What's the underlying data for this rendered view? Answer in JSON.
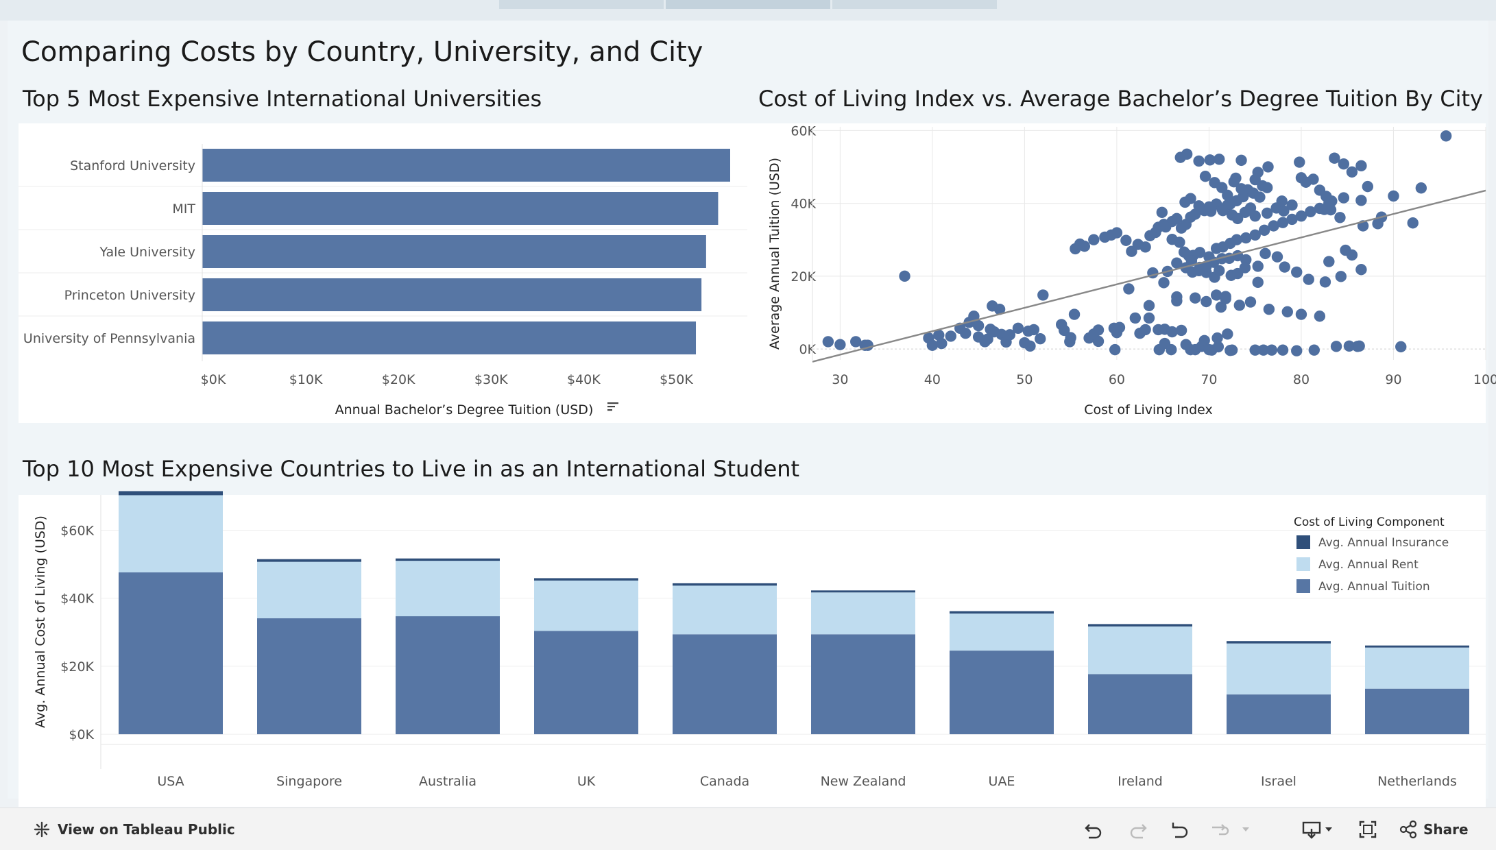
{
  "dashboard": {
    "title": "Comparing Costs by Country, University, and City"
  },
  "colors": {
    "tuition": "#5776a4",
    "rent": "#bfdcef",
    "insurance": "#2f4f7a",
    "point": "#4f6fa0",
    "trend": "#888888",
    "grid": "#e8e8e8"
  },
  "chart_data": [
    {
      "type": "bar",
      "title": "Top 5 Most Expensive International Universities",
      "categories": [
        "Stanford University",
        "MIT",
        "Yale University",
        "Princeton University",
        "University of Pennsylvania"
      ],
      "values": [
        57000,
        55700,
        54400,
        53900,
        53300
      ],
      "xlabel": "Annual Bachelor’s Degree Tuition (USD)",
      "xlim": [
        0,
        57000
      ],
      "ticks": [
        {
          "v": 0,
          "label": "$0K"
        },
        {
          "v": 10000,
          "label": "$10K"
        },
        {
          "v": 20000,
          "label": "$20K"
        },
        {
          "v": 30000,
          "label": "$30K"
        },
        {
          "v": 40000,
          "label": "$40K"
        },
        {
          "v": 50000,
          "label": "$50K"
        }
      ]
    },
    {
      "type": "scatter",
      "title": "Cost of Living Index vs. Average Bachelor’s Degree Tuition By City",
      "xlabel": "Cost of Living Index",
      "ylabel": "Average Annual Tuition (USD)",
      "xlim": [
        27,
        100
      ],
      "ylim": [
        -3000,
        61000
      ],
      "xticks": [
        {
          "v": 30,
          "label": "30"
        },
        {
          "v": 40,
          "label": "40"
        },
        {
          "v": 50,
          "label": "50"
        },
        {
          "v": 60,
          "label": "60"
        },
        {
          "v": 70,
          "label": "70"
        },
        {
          "v": 80,
          "label": "80"
        },
        {
          "v": 90,
          "label": "90"
        },
        {
          "v": 100,
          "label": "100"
        }
      ],
      "yticks": [
        {
          "v": 0,
          "label": "0K"
        },
        {
          "v": 20000,
          "label": "20K"
        },
        {
          "v": 40000,
          "label": "40K"
        },
        {
          "v": 60000,
          "label": "60K"
        }
      ],
      "trend": {
        "x": [
          27,
          100
        ],
        "y": [
          -3500,
          43500
        ]
      },
      "points": [
        [
          28.7,
          2000
        ],
        [
          30,
          1200
        ],
        [
          31.7,
          2000
        ],
        [
          32.7,
          1000
        ],
        [
          33,
          1000
        ],
        [
          37,
          20000
        ],
        [
          39.6,
          3000
        ],
        [
          40,
          1000
        ],
        [
          40.7,
          3800
        ],
        [
          41,
          1500
        ],
        [
          42,
          3500
        ],
        [
          43,
          5700
        ],
        [
          43.6,
          4300
        ],
        [
          44,
          7300
        ],
        [
          44.5,
          9000
        ],
        [
          45,
          6400
        ],
        [
          45,
          3300
        ],
        [
          45.7,
          2000
        ],
        [
          46,
          2700
        ],
        [
          46.3,
          5400
        ],
        [
          46.7,
          4700
        ],
        [
          46.5,
          11800
        ],
        [
          47.3,
          10900
        ],
        [
          47.5,
          4000
        ],
        [
          48,
          1900
        ],
        [
          48.4,
          3900
        ],
        [
          49.3,
          5700
        ],
        [
          50,
          1700
        ],
        [
          50.4,
          4900
        ],
        [
          50.6,
          800
        ],
        [
          51,
          5300
        ],
        [
          51.7,
          2800
        ],
        [
          52,
          14800
        ],
        [
          54,
          6700
        ],
        [
          54.3,
          5100
        ],
        [
          55,
          3100
        ],
        [
          54.9,
          2000
        ],
        [
          55.4,
          9500
        ],
        [
          57,
          3000
        ],
        [
          57.5,
          4100
        ],
        [
          58,
          2100
        ],
        [
          58,
          5200
        ],
        [
          59.7,
          5700
        ],
        [
          60,
          4500
        ],
        [
          59.8,
          -200
        ],
        [
          60.3,
          5900
        ],
        [
          61.3,
          16500
        ],
        [
          62,
          8500
        ],
        [
          62.5,
          4300
        ],
        [
          63.1,
          5300
        ],
        [
          63.5,
          8500
        ],
        [
          63.5,
          11900
        ],
        [
          64.5,
          5300
        ],
        [
          64.6,
          -200
        ],
        [
          65.2,
          1500
        ],
        [
          65.2,
          5400
        ],
        [
          65.9,
          -200
        ],
        [
          66,
          4700
        ],
        [
          66.5,
          13200
        ],
        [
          67,
          5100
        ],
        [
          67.5,
          1200
        ],
        [
          68,
          -200
        ],
        [
          68.5,
          -200
        ],
        [
          69.2,
          700
        ],
        [
          69.5,
          2300
        ],
        [
          70,
          -200
        ],
        [
          70.3,
          -300
        ],
        [
          70.9,
          3000
        ],
        [
          71,
          600
        ],
        [
          71.3,
          11500
        ],
        [
          71.8,
          14400
        ],
        [
          72,
          4100
        ],
        [
          72.3,
          -400
        ],
        [
          72.5,
          -300
        ],
        [
          75,
          -300
        ],
        [
          75.9,
          -300
        ],
        [
          76.8,
          -300
        ],
        [
          78,
          -300
        ],
        [
          79.5,
          -500
        ],
        [
          81.4,
          -300
        ],
        [
          83.8,
          700
        ],
        [
          85.2,
          800
        ],
        [
          86.1,
          700
        ],
        [
          86.3,
          800
        ],
        [
          90.8,
          600
        ],
        [
          55.5,
          27500
        ],
        [
          56,
          28800
        ],
        [
          56.5,
          28200
        ],
        [
          57.5,
          30000
        ],
        [
          58.7,
          30700
        ],
        [
          59.4,
          31300
        ],
        [
          60,
          31900
        ],
        [
          61,
          29800
        ],
        [
          61.6,
          26800
        ],
        [
          62.3,
          28700
        ],
        [
          63.1,
          28000
        ],
        [
          63.6,
          31100
        ],
        [
          64.2,
          32000
        ],
        [
          64.5,
          33400
        ],
        [
          65.1,
          34200
        ],
        [
          66,
          35000
        ],
        [
          66.5,
          35800
        ],
        [
          67,
          33200
        ],
        [
          67.5,
          34200
        ],
        [
          68,
          36200
        ],
        [
          68.5,
          37000
        ],
        [
          69.5,
          38000
        ],
        [
          70,
          39000
        ],
        [
          70.8,
          39800
        ],
        [
          71.4,
          38500
        ],
        [
          72,
          39500
        ],
        [
          72.5,
          36800
        ],
        [
          73.1,
          35800
        ],
        [
          73.9,
          37500
        ],
        [
          74.5,
          38700
        ],
        [
          75,
          36500
        ],
        [
          76.3,
          37300
        ],
        [
          77.3,
          38700
        ],
        [
          78.1,
          37900
        ],
        [
          79,
          39500
        ],
        [
          82.5,
          38300
        ],
        [
          83.3,
          40600
        ],
        [
          84.6,
          41500
        ],
        [
          86.5,
          40800
        ],
        [
          83,
          40000
        ],
        [
          67.4,
          40300
        ],
        [
          68,
          41300
        ],
        [
          68.9,
          39300
        ],
        [
          70.2,
          37800
        ],
        [
          71.5,
          38000
        ],
        [
          72.3,
          39800
        ],
        [
          73,
          40700
        ],
        [
          73.7,
          41800
        ],
        [
          74.2,
          43700
        ],
        [
          75,
          46500
        ],
        [
          75.8,
          44800
        ],
        [
          76.3,
          44300
        ],
        [
          67.8,
          25600
        ],
        [
          68.3,
          25700
        ],
        [
          69,
          26500
        ],
        [
          70,
          25300
        ],
        [
          70.8,
          27600
        ],
        [
          71.5,
          28000
        ],
        [
          72.3,
          29000
        ],
        [
          73,
          30000
        ],
        [
          74,
          30500
        ],
        [
          75,
          31300
        ],
        [
          76,
          32600
        ],
        [
          77,
          33800
        ],
        [
          78,
          34700
        ],
        [
          79,
          35600
        ],
        [
          80,
          36500
        ],
        [
          81,
          37700
        ],
        [
          82,
          38600
        ],
        [
          64.9,
          37500
        ],
        [
          65.3,
          33500
        ],
        [
          66,
          30100
        ],
        [
          66.8,
          29300
        ],
        [
          67.3,
          26600
        ],
        [
          68.1,
          24200
        ],
        [
          69,
          22400
        ],
        [
          69.7,
          21000
        ],
        [
          70.5,
          23800
        ],
        [
          71.4,
          24800
        ],
        [
          72.2,
          24900
        ],
        [
          73.1,
          25600
        ],
        [
          74,
          24500
        ],
        [
          75.3,
          22700
        ],
        [
          76.1,
          26200
        ],
        [
          77.4,
          25300
        ],
        [
          78.2,
          22500
        ],
        [
          79.5,
          21100
        ],
        [
          80.8,
          19100
        ],
        [
          82.6,
          18400
        ],
        [
          84.3,
          19900
        ],
        [
          65.5,
          21300
        ],
        [
          66.5,
          23600
        ],
        [
          67.5,
          22300
        ],
        [
          68.2,
          21100
        ],
        [
          68.9,
          21500
        ],
        [
          69.7,
          22700
        ],
        [
          70.6,
          19700
        ],
        [
          71.1,
          21500
        ],
        [
          72.4,
          20200
        ],
        [
          73.1,
          20700
        ],
        [
          73.9,
          22300
        ],
        [
          75.3,
          18300
        ],
        [
          63.9,
          20900
        ],
        [
          65.1,
          18200
        ],
        [
          66.5,
          14300
        ],
        [
          68.5,
          14000
        ],
        [
          69.7,
          13000
        ],
        [
          70.8,
          14800
        ],
        [
          71.8,
          13800
        ],
        [
          73.3,
          12000
        ],
        [
          74.5,
          12900
        ],
        [
          76.5,
          10900
        ],
        [
          78.5,
          10200
        ],
        [
          80,
          9500
        ],
        [
          82,
          9000
        ],
        [
          83,
          24000
        ],
        [
          84.8,
          27100
        ],
        [
          85.5,
          25800
        ],
        [
          86.5,
          21800
        ],
        [
          70.1,
          51900
        ],
        [
          71.1,
          52100
        ],
        [
          72.9,
          46900
        ],
        [
          73.5,
          51800
        ],
        [
          75.3,
          48500
        ],
        [
          76.4,
          50000
        ],
        [
          79.8,
          51300
        ],
        [
          83.6,
          52400
        ],
        [
          84.6,
          50800
        ],
        [
          85.5,
          48600
        ],
        [
          86.5,
          50300
        ],
        [
          87.2,
          44600
        ],
        [
          93,
          44200
        ],
        [
          95.7,
          58500
        ],
        [
          66.9,
          52600
        ],
        [
          67.6,
          53500
        ],
        [
          68.9,
          51600
        ],
        [
          69.6,
          47400
        ],
        [
          70.6,
          45700
        ],
        [
          71.4,
          44300
        ],
        [
          72,
          42200
        ],
        [
          72.7,
          45900
        ],
        [
          73.5,
          44000
        ],
        [
          74.8,
          42800
        ],
        [
          75.5,
          41700
        ],
        [
          77.9,
          40600
        ],
        [
          80,
          47000
        ],
        [
          81.3,
          46600
        ],
        [
          82,
          43600
        ],
        [
          83.2,
          38200
        ],
        [
          84.2,
          36100
        ],
        [
          88.7,
          36200
        ],
        [
          92.1,
          34600
        ],
        [
          90,
          42000
        ],
        [
          86.7,
          33800
        ],
        [
          88.3,
          34400
        ],
        [
          80.5,
          45800
        ],
        [
          82.7,
          41900
        ]
      ]
    },
    {
      "type": "bar",
      "stacked": true,
      "title": "Top 10 Most Expensive Countries to Live in as an International Student",
      "ylabel": "Avg. Annual Cost of Living (USD)",
      "ylim": [
        -3000,
        72000
      ],
      "yticks": [
        {
          "v": 0,
          "label": "$0K"
        },
        {
          "v": 20000,
          "label": "$20K"
        },
        {
          "v": 40000,
          "label": "$40K"
        },
        {
          "v": 60000,
          "label": "$60K"
        }
      ],
      "categories": [
        "USA",
        "Singapore",
        "Australia",
        "UK",
        "Canada",
        "New Zealand",
        "UAE",
        "Ireland",
        "Israel",
        "Netherlands"
      ],
      "legend_title": "Cost of Living Component",
      "legend_position": "top-right",
      "series": [
        {
          "name": "Avg. Annual Tuition",
          "color": "#5776a4",
          "values": [
            47600,
            34100,
            34700,
            30400,
            29400,
            29400,
            24600,
            17700,
            11700,
            13400
          ]
        },
        {
          "name": "Avg. Annual Rent",
          "color": "#bfdcef",
          "values": [
            22700,
            16600,
            16300,
            14800,
            14300,
            12300,
            10900,
            14000,
            15000,
            12100
          ]
        },
        {
          "name": "Avg. Annual Insurance",
          "color": "#2f4f7a",
          "values": [
            1200,
            800,
            700,
            700,
            700,
            600,
            700,
            700,
            700,
            600
          ]
        }
      ],
      "legend_order": [
        "Avg. Annual Insurance",
        "Avg. Annual Rent",
        "Avg. Annual Tuition"
      ]
    }
  ],
  "footer": {
    "view_label": "View on Tableau Public",
    "share_label": "Share",
    "icons": [
      "tableau-logo-icon",
      "undo-icon",
      "redo-icon",
      "revert-icon",
      "refresh-icon",
      "dropdown-icon",
      "download-icon",
      "fullscreen-icon",
      "share-icon"
    ]
  }
}
